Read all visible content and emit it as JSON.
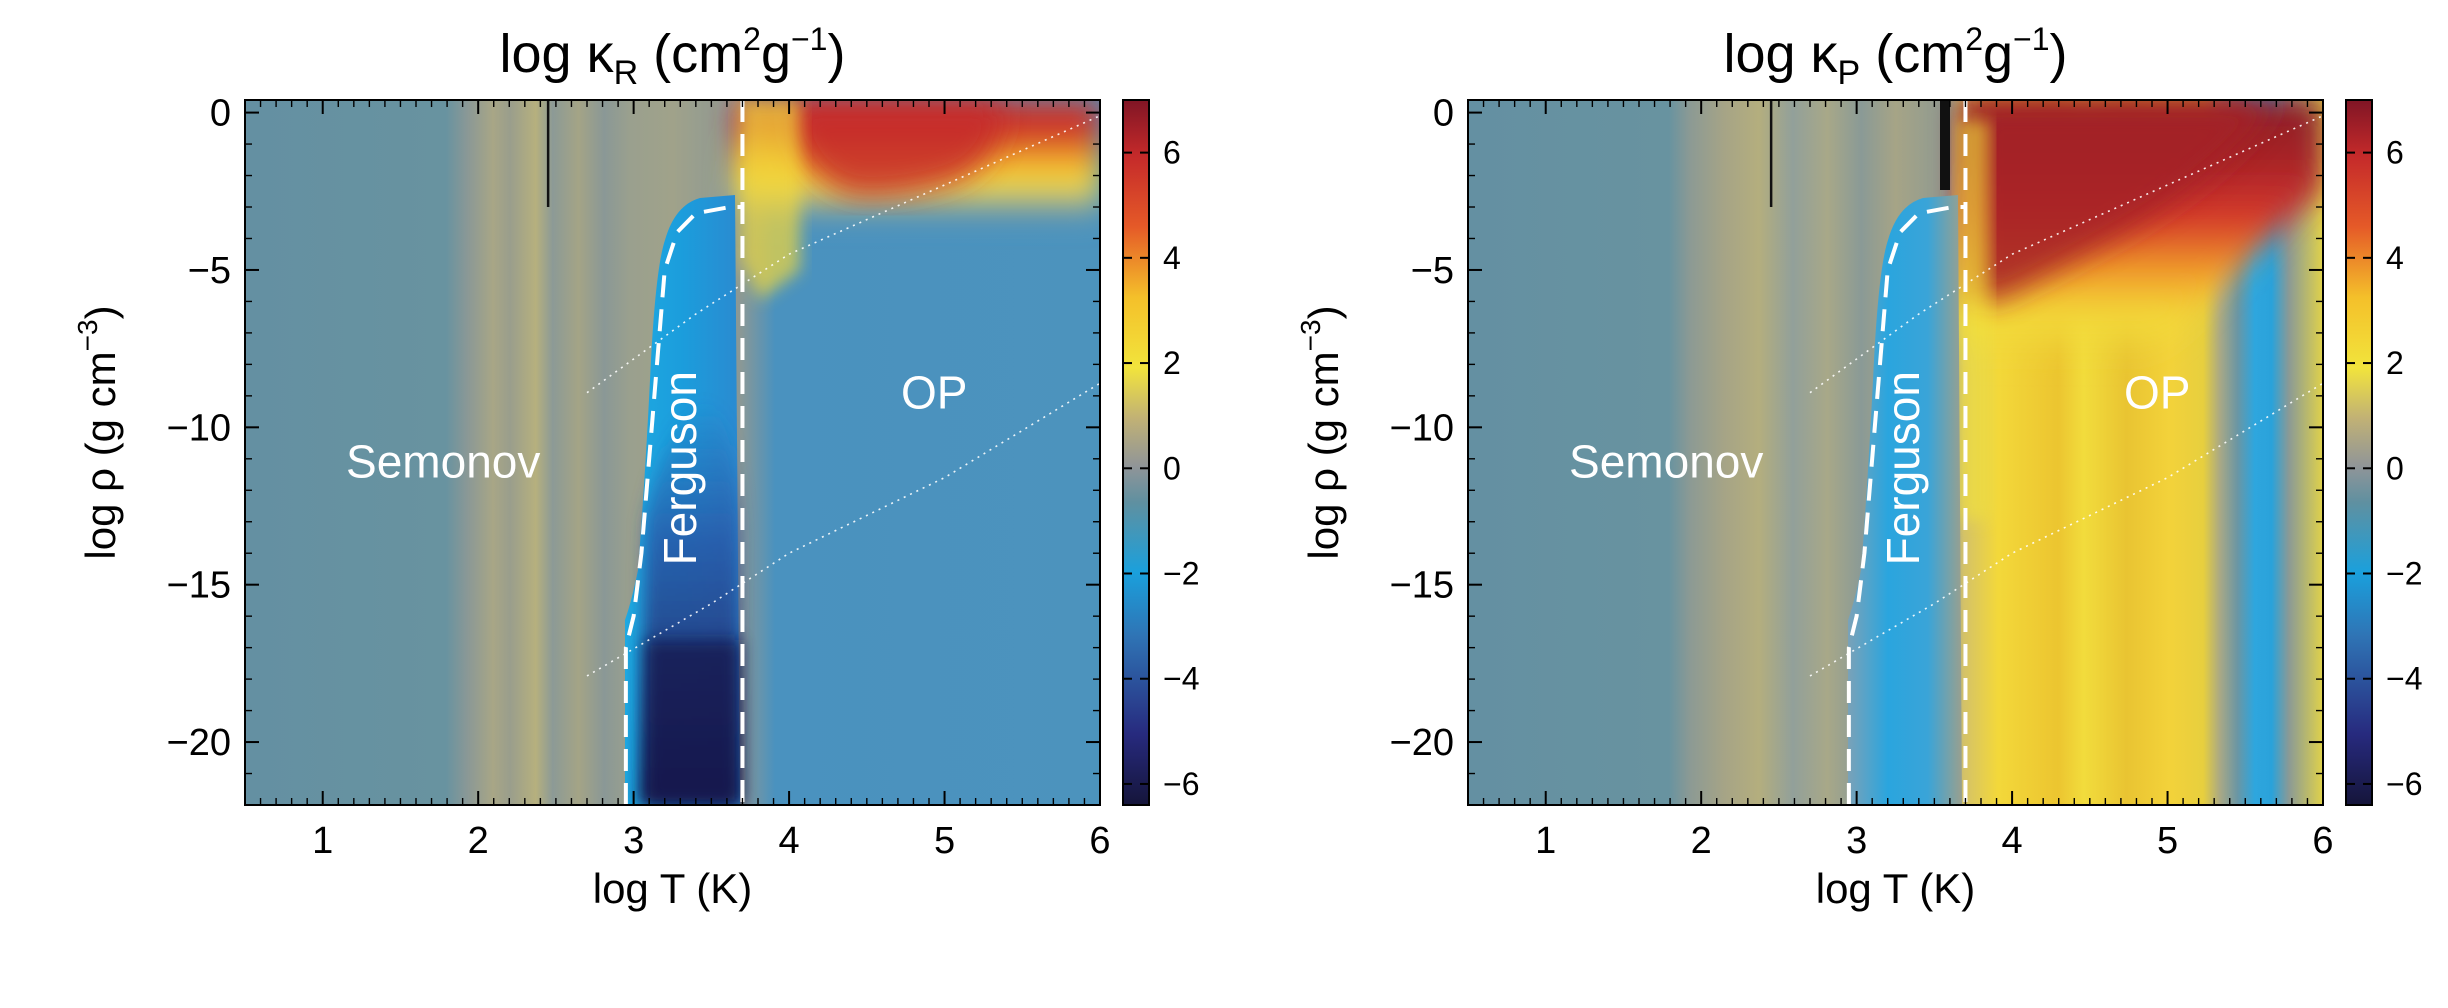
{
  "chart_data": [
    {
      "type": "heatmap",
      "title": {
        "main": "log κ",
        "sub": "R",
        "unit_pre": " (cm",
        "sup1": "2",
        "unit_mid": "g",
        "sup2": "−1",
        "unit_post": ")"
      },
      "xlabel": "log T (K)",
      "ylabel": {
        "pre": "log ρ (g cm",
        "sup": "−3",
        "post": ")"
      },
      "xlim": [
        0.5,
        6.0
      ],
      "ylim": [
        -22,
        0.4
      ],
      "xticks": [
        1,
        2,
        3,
        4,
        5,
        6
      ],
      "yticks": [
        0,
        -5,
        -10,
        -15,
        -20
      ],
      "xticklabels": [
        "1",
        "2",
        "3",
        "4",
        "5",
        "6"
      ],
      "yticklabels": [
        "0",
        "−5",
        "−10",
        "−15",
        "−20"
      ],
      "colorbar": {
        "range": [
          -6.4,
          7.0
        ],
        "ticks": [
          6,
          4,
          2,
          0,
          -2,
          -4,
          -6
        ],
        "ticklabels": [
          "6",
          "4",
          "2",
          "0",
          "−2",
          "−4",
          "−6"
        ]
      },
      "regions": [
        {
          "label": "Semonov",
          "x": 1.15,
          "y": -11.6,
          "rotate": 0
        },
        {
          "label": "Ferguson",
          "x": 3.4,
          "y": -11.3,
          "rotate": -90
        },
        {
          "label": "OP",
          "x": 4.72,
          "y": -9.4,
          "rotate": 0
        }
      ],
      "ferguson_boundary": [
        [
          2.95,
          -22
        ],
        [
          2.95,
          -17
        ],
        [
          3.0,
          -16
        ],
        [
          3.05,
          -14
        ],
        [
          3.1,
          -11
        ],
        [
          3.15,
          -8
        ],
        [
          3.2,
          -5
        ],
        [
          3.28,
          -3.8
        ],
        [
          3.4,
          -3.2
        ],
        [
          3.62,
          -3.0
        ],
        [
          3.7,
          -3
        ]
      ],
      "op_boundary_x": 3.7,
      "dotted_lines": [
        [
          [
            2.7,
            -8.9
          ],
          [
            3.4,
            -6.4
          ],
          [
            4.0,
            -4.5
          ],
          [
            5.0,
            -2.3
          ],
          [
            6.0,
            -0.1
          ]
        ],
        [
          [
            2.7,
            -17.9
          ],
          [
            3.5,
            -15.6
          ],
          [
            4.0,
            -14.0
          ],
          [
            5.0,
            -11.6
          ],
          [
            6.0,
            -8.6
          ]
        ]
      ]
    },
    {
      "type": "heatmap",
      "title": {
        "main": "log κ",
        "sub": "P",
        "unit_pre": " (cm",
        "sup1": "2",
        "unit_mid": "g",
        "sup2": "−1",
        "unit_post": ")"
      },
      "xlabel": "log T (K)",
      "ylabel": {
        "pre": "log ρ (g cm",
        "sup": "−3",
        "post": ")"
      },
      "xlim": [
        0.5,
        6.0
      ],
      "ylim": [
        -22,
        0.4
      ],
      "xticks": [
        1,
        2,
        3,
        4,
        5,
        6
      ],
      "yticks": [
        0,
        -5,
        -10,
        -15,
        -20
      ],
      "xticklabels": [
        "1",
        "2",
        "3",
        "4",
        "5",
        "6"
      ],
      "yticklabels": [
        "0",
        "−5",
        "−10",
        "−15",
        "−20"
      ],
      "colorbar": {
        "range": [
          -6.4,
          7.0
        ],
        "ticks": [
          6,
          4,
          2,
          0,
          -2,
          -4,
          -6
        ],
        "ticklabels": [
          "6",
          "4",
          "2",
          "0",
          "−2",
          "−4",
          "−6"
        ]
      },
      "regions": [
        {
          "label": "Semonov",
          "x": 1.15,
          "y": -11.6,
          "rotate": 0
        },
        {
          "label": "Ferguson",
          "x": 3.4,
          "y": -11.3,
          "rotate": -90
        },
        {
          "label": "OP",
          "x": 4.72,
          "y": -9.4,
          "rotate": 0
        }
      ],
      "ferguson_boundary": [
        [
          2.95,
          -22
        ],
        [
          2.95,
          -17
        ],
        [
          3.0,
          -16
        ],
        [
          3.05,
          -14
        ],
        [
          3.1,
          -11
        ],
        [
          3.15,
          -8
        ],
        [
          3.2,
          -5
        ],
        [
          3.28,
          -3.8
        ],
        [
          3.4,
          -3.2
        ],
        [
          3.62,
          -3.0
        ],
        [
          3.7,
          -3
        ]
      ],
      "op_boundary_x": 3.7,
      "dotted_lines": [
        [
          [
            2.7,
            -8.9
          ],
          [
            3.4,
            -6.4
          ],
          [
            4.0,
            -4.5
          ],
          [
            5.0,
            -2.3
          ],
          [
            6.0,
            -0.1
          ]
        ],
        [
          [
            2.7,
            -17.9
          ],
          [
            3.5,
            -15.6
          ],
          [
            4.0,
            -14.0
          ],
          [
            5.0,
            -11.6
          ],
          [
            6.0,
            -8.6
          ]
        ]
      ]
    }
  ]
}
